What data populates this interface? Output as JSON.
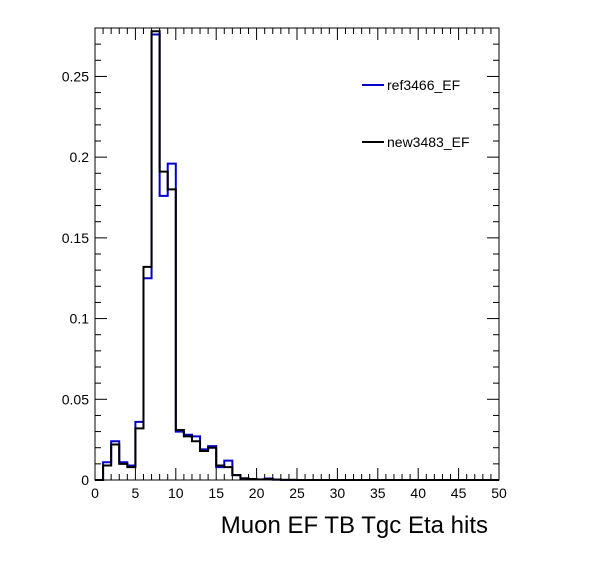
{
  "chart_data": {
    "type": "histogram",
    "title": "",
    "xlabel": "Muon EF TB Tgc Eta hits",
    "ylabel": "",
    "xlim": [
      0,
      50
    ],
    "ylim": [
      0,
      0.28
    ],
    "bin_width": 1,
    "x_ticks": [
      "0",
      "5",
      "10",
      "15",
      "20",
      "25",
      "30",
      "35",
      "40",
      "45",
      "50"
    ],
    "y_ticks": [
      "0",
      "0.05",
      "0.1",
      "0.15",
      "0.2",
      "0.25"
    ],
    "legend_position": "top-right",
    "series": [
      {
        "name": "ref3466_EF",
        "color": "#0000cc",
        "bin_edges_start": 0,
        "values": [
          0.0,
          0.011,
          0.024,
          0.011,
          0.009,
          0.036,
          0.125,
          0.276,
          0.176,
          0.196,
          0.03,
          0.028,
          0.027,
          0.019,
          0.021,
          0.008,
          0.012,
          0.003,
          0.001,
          0.0006,
          0.0004,
          0.0009,
          0.0002,
          0.0001,
          0.0001,
          0.0,
          0.0,
          0.0,
          0.0,
          0.0,
          0.0,
          0.0,
          0.0,
          0.0,
          0.0,
          0.0,
          0.0,
          0.0,
          0.0,
          0.0,
          0.0,
          0.0,
          0.0,
          0.0,
          0.0,
          0.0,
          0.0,
          0.0,
          0.0,
          0.0
        ]
      },
      {
        "name": "new3483_EF",
        "color": "#000000",
        "bin_edges_start": 0,
        "values": [
          0.0,
          0.009,
          0.022,
          0.01,
          0.008,
          0.032,
          0.132,
          0.278,
          0.191,
          0.18,
          0.031,
          0.027,
          0.024,
          0.018,
          0.02,
          0.009,
          0.008,
          0.003,
          0.001,
          0.0006,
          0.0003,
          0.0006,
          0.0002,
          0.0001,
          0.0001,
          0.0,
          0.0,
          0.0,
          0.0,
          0.0,
          0.0,
          0.0,
          0.0,
          0.0,
          0.0,
          0.0,
          0.0,
          0.0,
          0.0,
          0.0,
          0.0,
          0.0,
          0.0,
          0.0,
          0.0,
          0.0,
          0.0,
          0.0,
          0.0,
          0.0
        ]
      }
    ]
  }
}
